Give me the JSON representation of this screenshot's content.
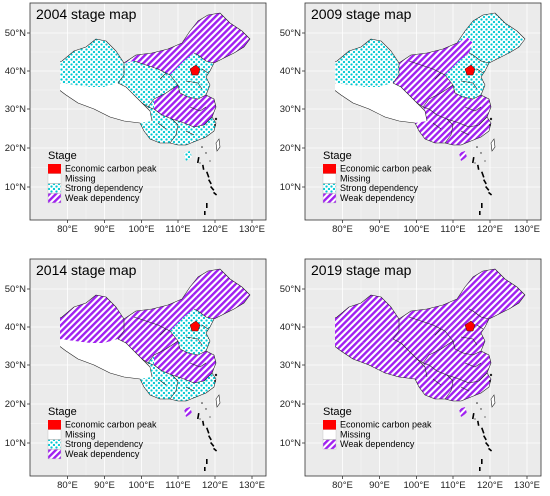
{
  "legend": {
    "title": "Stage",
    "items": [
      {
        "key": "peak",
        "label": "Economic carbon peak",
        "color": "#ff0000"
      },
      {
        "key": "missing",
        "label": "Missing",
        "color": "#ffffff"
      },
      {
        "key": "strong",
        "label": "Strong dependency",
        "color": "#00c8d2"
      },
      {
        "key": "weak",
        "label": "Weak dependency",
        "color": "#a020f0"
      }
    ]
  },
  "x_ticks": [
    "80°E",
    "90°E",
    "100°E",
    "110°E",
    "120°E",
    "130°E"
  ],
  "y_ticks": [
    "50°N",
    "40°N",
    "30°N",
    "20°N",
    "10°N"
  ],
  "panels": [
    {
      "title": "2004 stage map",
      "regions": {
        "northeast": "weak",
        "inner_mongolia": "weak",
        "xinjiang": "strong",
        "tibet": "missing",
        "northwest": "strong",
        "north_china": "strong",
        "beijing": "peak",
        "central": "weak",
        "southwest": "strong",
        "south": "strong",
        "hainan": "strong"
      }
    },
    {
      "title": "2009 stage map",
      "regions": {
        "northeast": "strong",
        "inner_mongolia": "weak",
        "xinjiang": "strong",
        "tibet": "missing",
        "northwest": "weak",
        "north_china": "strong",
        "beijing": "peak",
        "central": "weak",
        "southwest": "weak",
        "south": "weak",
        "hainan": "weak"
      }
    },
    {
      "title": "2014 stage map",
      "regions": {
        "northeast": "weak",
        "inner_mongolia": "weak",
        "xinjiang": "weak",
        "tibet": "missing",
        "northwest": "weak",
        "north_china": "strong",
        "beijing": "peak",
        "central": "weak",
        "southwest": "strong",
        "south": "strong",
        "hainan": "weak"
      }
    },
    {
      "title": "2019 stage map",
      "regions": {
        "northeast": "weak",
        "inner_mongolia": "weak",
        "xinjiang": "weak",
        "tibet": "weak",
        "northwest": "weak",
        "north_china": "weak",
        "beijing": "peak",
        "central": "weak",
        "southwest": "weak",
        "south": "weak",
        "hainan": "weak"
      },
      "legend_keys": [
        "peak",
        "missing",
        "weak"
      ]
    }
  ]
}
